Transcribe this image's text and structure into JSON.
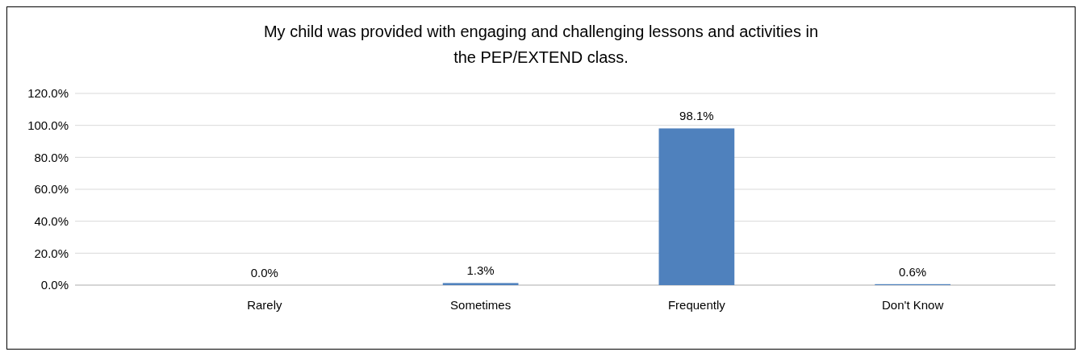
{
  "chart_data": {
    "type": "bar",
    "title": "My child was provided with engaging and challenging lessons and activities in the PEP/EXTEND class.",
    "categories": [
      "Rarely",
      "Sometimes",
      "Frequently",
      "Don't Know"
    ],
    "values": [
      0,
      1.3,
      98.1,
      0.6
    ],
    "value_labels": [
      "0.0%",
      "1.3%",
      "98.1%",
      "0.6%"
    ],
    "color": "#4f81bd",
    "ylim": [
      0,
      120
    ],
    "yticks": [
      {
        "value": 0,
        "label": "0.0%"
      },
      {
        "value": 20,
        "label": "20.0%"
      },
      {
        "value": 40,
        "label": "40.0%"
      },
      {
        "value": 60,
        "label": "60.0%"
      },
      {
        "value": 80,
        "label": "80.0%"
      },
      {
        "value": 100,
        "label": "100.0%"
      },
      {
        "value": 120,
        "label": "120.0%"
      }
    ],
    "grid": "y"
  }
}
